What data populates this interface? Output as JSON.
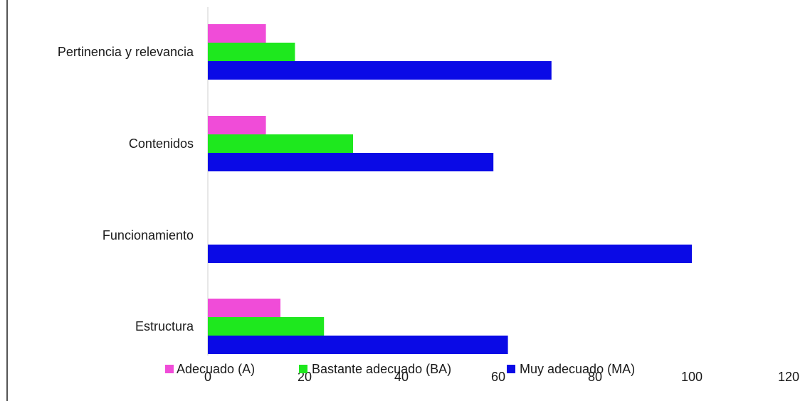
{
  "chart_data": {
    "type": "bar",
    "orientation": "horizontal",
    "categories": [
      "Pertinencia y relevancia",
      "Contenidos",
      "Funcionamiento",
      "Estructura"
    ],
    "series": [
      {
        "name": "Adecuado (A)",
        "color": "#f04cd8",
        "values": [
          12,
          12,
          0,
          15
        ]
      },
      {
        "name": "Bastante adecuado (BA)",
        "color": "#1ee81e",
        "values": [
          18,
          30,
          0,
          24
        ]
      },
      {
        "name": "Muy adecuado (MA)",
        "color": "#0a0ae6",
        "values": [
          71,
          59,
          100,
          62
        ]
      }
    ],
    "xlim": [
      0,
      120
    ],
    "x_ticks": [
      "0",
      "20",
      "40",
      "60",
      "80",
      "100",
      "120"
    ],
    "grid": false,
    "legend_position": "bottom",
    "title": "",
    "xlabel": "",
    "ylabel": ""
  }
}
